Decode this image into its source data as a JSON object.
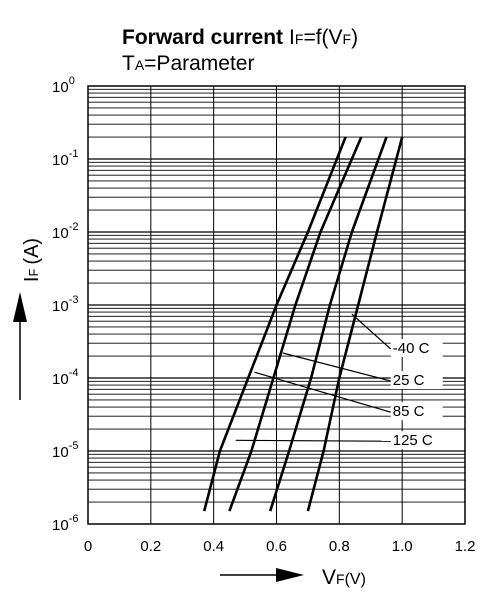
{
  "chart_data": {
    "type": "line",
    "title": {
      "bold": "Forward current",
      "formula_I": "I",
      "formula_F_sub": "F",
      "formula_eq": "=f(V",
      "formula_F_sub2": "F",
      "formula_close": ")"
    },
    "subtitle": {
      "T": "T",
      "A_sub": "A",
      "rest": "=Parameter"
    },
    "xlabel": {
      "V": "V",
      "F_sub": "F",
      "unit": "(V)"
    },
    "ylabel": {
      "I": "I",
      "F_sub": "F",
      "unit": "(A)"
    },
    "x_scale": "linear",
    "y_scale": "log",
    "xlim": [
      0,
      1.2
    ],
    "ylim": [
      1e-06,
      1
    ],
    "x_ticks": [
      "0",
      "0.2",
      "0.4",
      "0.6",
      "0.8",
      "1.0",
      "1.2"
    ],
    "y_ticks": [
      {
        "base": "10",
        "exp": "-6"
      },
      {
        "base": "10",
        "exp": "-5"
      },
      {
        "base": "10",
        "exp": "-4"
      },
      {
        "base": "10",
        "exp": "-3"
      },
      {
        "base": "10",
        "exp": "-2"
      },
      {
        "base": "10",
        "exp": "-1"
      },
      {
        "base": "10",
        "exp": "0"
      }
    ],
    "grid": true,
    "series": [
      {
        "name": "-40 C",
        "points": [
          [
            0.7,
            1.5e-06
          ],
          [
            0.75,
            1e-05
          ],
          [
            0.8,
            0.0001
          ],
          [
            0.86,
            0.001
          ],
          [
            0.92,
            0.01
          ],
          [
            1.0,
            0.2
          ]
        ]
      },
      {
        "name": "25 C",
        "points": [
          [
            0.58,
            1.5e-06
          ],
          [
            0.64,
            1e-05
          ],
          [
            0.71,
            0.0001
          ],
          [
            0.77,
            0.001
          ],
          [
            0.84,
            0.01
          ],
          [
            0.95,
            0.2
          ]
        ]
      },
      {
        "name": "85 C",
        "points": [
          [
            0.45,
            1.5e-06
          ],
          [
            0.52,
            1e-05
          ],
          [
            0.59,
            0.0001
          ],
          [
            0.66,
            0.001
          ],
          [
            0.74,
            0.01
          ],
          [
            0.87,
            0.2
          ]
        ]
      },
      {
        "name": "125 C",
        "points": [
          [
            0.37,
            1.5e-06
          ],
          [
            0.42,
            1e-05
          ],
          [
            0.51,
            0.0001
          ],
          [
            0.6,
            0.001
          ],
          [
            0.7,
            0.01
          ],
          [
            0.82,
            0.2
          ]
        ]
      }
    ],
    "annotations": [
      "-40 C",
      "25 C",
      "85 C",
      "125 C"
    ]
  }
}
